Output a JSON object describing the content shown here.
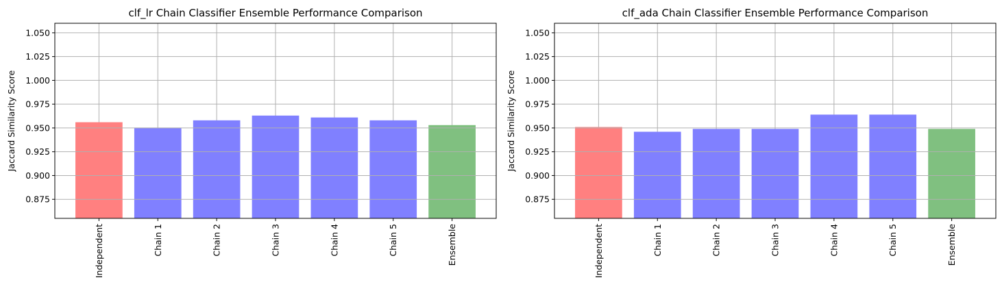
{
  "chart_data": [
    {
      "type": "bar",
      "title": "clf_lr Chain Classifier Ensemble Performance Comparison",
      "xlabel": "",
      "ylabel": "Jaccard Similarity Score",
      "categories": [
        "Independent",
        "Chain 1",
        "Chain 2",
        "Chain 3",
        "Chain 4",
        "Chain 5",
        "Ensemble"
      ],
      "values": [
        0.956,
        0.95,
        0.958,
        0.963,
        0.961,
        0.958,
        0.953
      ],
      "bar_colors": [
        "#ff8080",
        "#8080ff",
        "#8080ff",
        "#8080ff",
        "#8080ff",
        "#8080ff",
        "#80c080"
      ],
      "ylim": [
        0.855,
        1.06
      ],
      "yticks": [
        "0.875",
        "0.900",
        "0.925",
        "0.950",
        "0.975",
        "1.000",
        "1.025",
        "1.050"
      ],
      "grid": true
    },
    {
      "type": "bar",
      "title": "clf_ada Chain Classifier Ensemble Performance Comparison",
      "xlabel": "",
      "ylabel": "Jaccard Similarity Score",
      "categories": [
        "Independent",
        "Chain 1",
        "Chain 2",
        "Chain 3",
        "Chain 4",
        "Chain 5",
        "Ensemble"
      ],
      "values": [
        0.951,
        0.946,
        0.949,
        0.949,
        0.964,
        0.964,
        0.949
      ],
      "bar_colors": [
        "#ff8080",
        "#8080ff",
        "#8080ff",
        "#8080ff",
        "#8080ff",
        "#8080ff",
        "#80c080"
      ],
      "ylim": [
        0.855,
        1.06
      ],
      "yticks": [
        "0.875",
        "0.900",
        "0.925",
        "0.950",
        "0.975",
        "1.000",
        "1.025",
        "1.050"
      ],
      "grid": true
    }
  ]
}
